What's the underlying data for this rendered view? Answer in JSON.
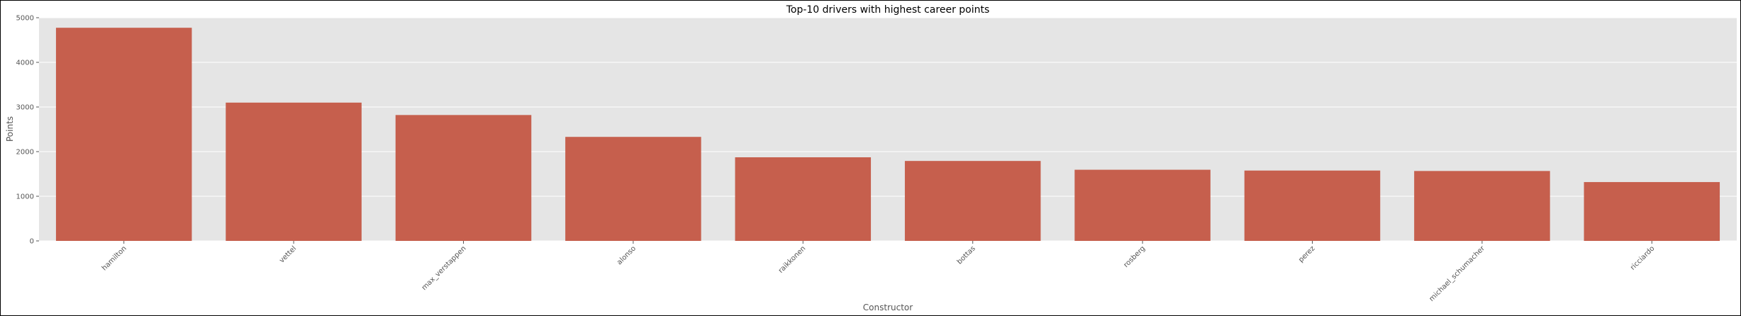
{
  "chart_data": {
    "type": "bar",
    "title": "Top-10 drivers with highest career points",
    "xlabel": "Constructor",
    "ylabel": "Points",
    "categories": [
      "hamilton",
      "vettel",
      "max_verstappen",
      "alonso",
      "raikkonen",
      "bottas",
      "rosberg",
      "perez",
      "michael_schumacher",
      "ricciardo"
    ],
    "values": [
      4775,
      3098,
      2820,
      2330,
      1873,
      1791,
      1594,
      1576,
      1566,
      1318
    ],
    "ylim": [
      0,
      5000
    ],
    "yticks": [
      0,
      1000,
      2000,
      3000,
      4000,
      5000
    ],
    "grid": true,
    "legend": "none",
    "colors": {
      "bar": "#c65f4d",
      "plot_bg": "#e5e5e5",
      "grid": "#ffffff",
      "tick_text": "#555555"
    }
  }
}
